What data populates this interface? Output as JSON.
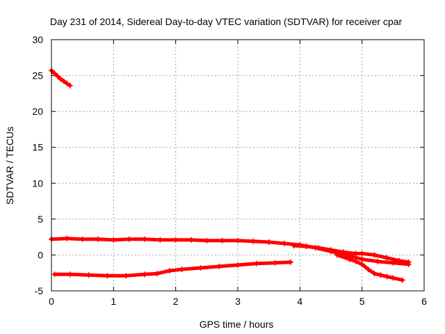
{
  "chart_data": {
    "type": "scatter",
    "title": "Day 231 of 2014, Sidereal Day-to-day VTEC variation (SDTVAR) for receiver cpar",
    "xlabel": "GPS time / hours",
    "ylabel": "SDTVAR / TECUs",
    "xlim": [
      0,
      6
    ],
    "ylim": [
      -5,
      30
    ],
    "xticks": [
      "0",
      "1",
      "2",
      "3",
      "4",
      "5",
      "6"
    ],
    "yticks": [
      "-5",
      "0",
      "5",
      "10",
      "15",
      "20",
      "25",
      "30"
    ],
    "grid": true,
    "legend": "none",
    "marker": "+",
    "color": "#ff0000",
    "series": [
      {
        "x": [
          0.0,
          0.05,
          0.1,
          0.15,
          0.2,
          0.25,
          0.3
        ],
        "y": [
          25.7,
          25.3,
          24.9,
          24.5,
          24.2,
          23.9,
          23.6
        ]
      },
      {
        "x": [
          0.0,
          0.25,
          0.5,
          0.75,
          1.0,
          1.25,
          1.5,
          1.75,
          2.0,
          2.25,
          2.5,
          2.75,
          3.0,
          3.25,
          3.5,
          3.75,
          4.0,
          4.25,
          4.5,
          4.75,
          5.0,
          5.25,
          5.5,
          5.75
        ],
        "y": [
          2.2,
          2.3,
          2.2,
          2.2,
          2.1,
          2.2,
          2.2,
          2.1,
          2.1,
          2.1,
          2.0,
          2.0,
          2.0,
          1.9,
          1.8,
          1.6,
          1.4,
          1.0,
          0.5,
          0.0,
          -0.6,
          -0.9,
          -1.1,
          -1.3
        ]
      },
      {
        "x": [
          3.9,
          4.1,
          4.3,
          4.5,
          4.7,
          4.9,
          5.0,
          5.2,
          5.4,
          5.6,
          5.75
        ],
        "y": [
          1.3,
          1.2,
          1.0,
          0.7,
          0.4,
          0.2,
          0.2,
          0.0,
          -0.4,
          -0.8,
          -1.0
        ]
      },
      {
        "x": [
          0.05,
          0.3,
          0.6,
          0.9,
          1.2,
          1.5,
          1.7,
          1.9,
          2.1,
          2.4,
          2.7,
          3.0,
          3.3,
          3.6,
          3.85
        ],
        "y": [
          -2.7,
          -2.7,
          -2.8,
          -2.9,
          -2.9,
          -2.7,
          -2.6,
          -2.2,
          -2.0,
          -1.8,
          -1.6,
          -1.4,
          -1.2,
          -1.1,
          -1.0
        ]
      },
      {
        "x": [
          4.6,
          4.8,
          4.9,
          5.0,
          5.1,
          5.2,
          5.3,
          5.4,
          5.5,
          5.65
        ],
        "y": [
          0.0,
          -0.6,
          -0.9,
          -1.3,
          -2.0,
          -2.6,
          -2.8,
          -3.0,
          -3.2,
          -3.5
        ]
      }
    ]
  }
}
